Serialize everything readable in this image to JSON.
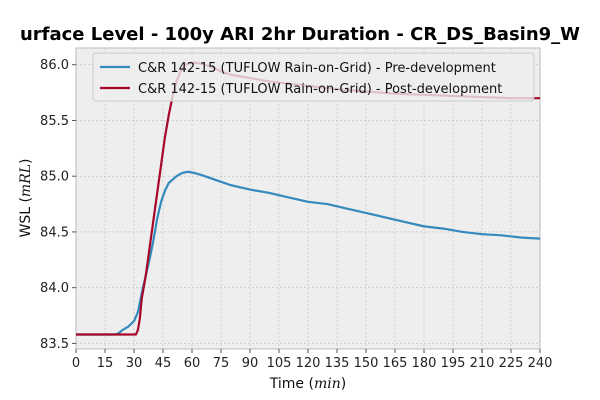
{
  "chart_data": {
    "type": "line",
    "title": "urface Level - 100y ARI 2hr Duration - CR_DS_Basin9_W",
    "xlabel": "Time",
    "xlabel_unit": "min",
    "ylabel": "WSL",
    "ylabel_unit": "mRL",
    "xlim": [
      0,
      240
    ],
    "ylim": [
      83.45,
      86.15
    ],
    "x_ticks": [
      0,
      15,
      30,
      45,
      60,
      75,
      90,
      105,
      120,
      135,
      150,
      165,
      180,
      195,
      210,
      225,
      240
    ],
    "y_ticks": [
      83.5,
      84.0,
      84.5,
      85.0,
      85.5,
      86.0
    ],
    "y_tick_labels": [
      "83.5",
      "84.0",
      "84.5",
      "85.0",
      "85.5",
      "86.0"
    ],
    "grid": true,
    "legend_position": "top-right",
    "series": [
      {
        "name": "C&R 142-15 (TUFLOW Rain-on-Grid) - Pre-development",
        "color": "#348abd",
        "points": [
          [
            0,
            83.58
          ],
          [
            20,
            83.58
          ],
          [
            22,
            83.59
          ],
          [
            24,
            83.62
          ],
          [
            27,
            83.65
          ],
          [
            30,
            83.7
          ],
          [
            32,
            83.78
          ],
          [
            34,
            83.95
          ],
          [
            36,
            84.1
          ],
          [
            38,
            84.25
          ],
          [
            40,
            84.42
          ],
          [
            42,
            84.62
          ],
          [
            44,
            84.77
          ],
          [
            46,
            84.87
          ],
          [
            48,
            84.94
          ],
          [
            50,
            84.97
          ],
          [
            52,
            85.0
          ],
          [
            55,
            85.03
          ],
          [
            58,
            85.04
          ],
          [
            61,
            85.03
          ],
          [
            65,
            85.01
          ],
          [
            70,
            84.98
          ],
          [
            75,
            84.95
          ],
          [
            80,
            84.92
          ],
          [
            85,
            84.9
          ],
          [
            90,
            84.88
          ],
          [
            100,
            84.85
          ],
          [
            110,
            84.81
          ],
          [
            120,
            84.77
          ],
          [
            130,
            84.75
          ],
          [
            140,
            84.71
          ],
          [
            150,
            84.67
          ],
          [
            160,
            84.63
          ],
          [
            170,
            84.59
          ],
          [
            180,
            84.55
          ],
          [
            190,
            84.53
          ],
          [
            200,
            84.5
          ],
          [
            210,
            84.48
          ],
          [
            220,
            84.47
          ],
          [
            230,
            84.45
          ],
          [
            240,
            84.44
          ]
        ]
      },
      {
        "name": "C&R 142-15 (TUFLOW Rain-on-Grid) - Post-development",
        "color": "#a60628",
        "points": [
          [
            0,
            83.58
          ],
          [
            31,
            83.58
          ],
          [
            32,
            83.62
          ],
          [
            33,
            83.72
          ],
          [
            34,
            83.9
          ],
          [
            36,
            84.1
          ],
          [
            38,
            84.35
          ],
          [
            40,
            84.6
          ],
          [
            42,
            84.85
          ],
          [
            44,
            85.1
          ],
          [
            46,
            85.35
          ],
          [
            48,
            85.55
          ],
          [
            50,
            85.72
          ],
          [
            52,
            85.85
          ],
          [
            54,
            85.94
          ],
          [
            56,
            85.99
          ],
          [
            58,
            86.01
          ],
          [
            60,
            86.02
          ],
          [
            65,
            86.01
          ],
          [
            70,
            85.98
          ],
          [
            75,
            85.94
          ],
          [
            80,
            85.91
          ],
          [
            90,
            85.88
          ],
          [
            100,
            85.85
          ],
          [
            110,
            85.83
          ],
          [
            120,
            85.81
          ],
          [
            135,
            85.78
          ],
          [
            150,
            85.76
          ],
          [
            165,
            85.74
          ],
          [
            180,
            85.73
          ],
          [
            195,
            85.72
          ],
          [
            210,
            85.71
          ],
          [
            225,
            85.7
          ],
          [
            240,
            85.7
          ]
        ]
      }
    ]
  }
}
